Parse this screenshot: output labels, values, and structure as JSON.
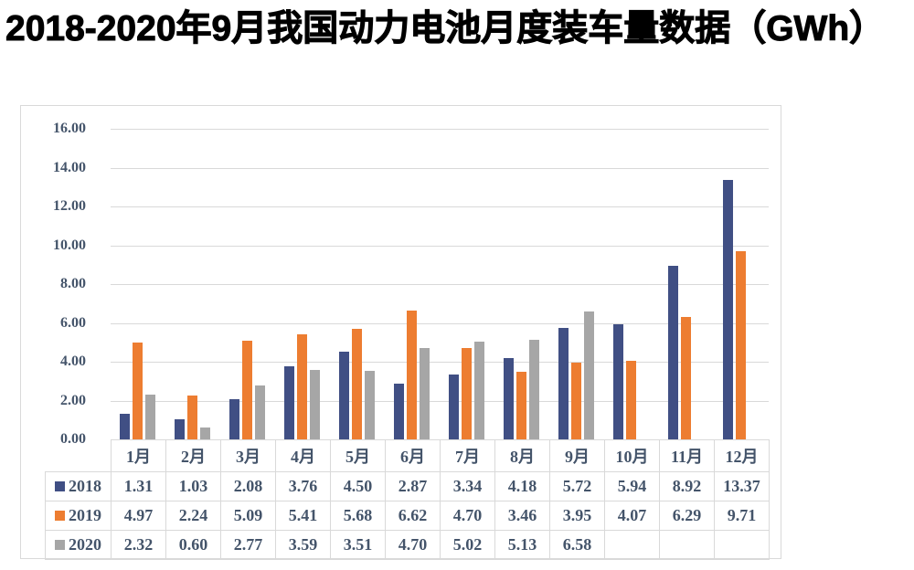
{
  "title": "2018-2020年9月我国动力电池月度装车量数据（GWh）",
  "colors": {
    "series_2018": "#404F84",
    "series_2019": "#ED7D31",
    "series_2020": "#A6A6A6",
    "gridline": "#D9D9D9",
    "axis_text": "#44546A",
    "table_border": "#D9D9D9",
    "title_text": "#000000"
  },
  "chart_data": {
    "type": "bar",
    "title": "2018-2020年9月我国动力电池月度装车量数据（GWh）",
    "xlabel": "",
    "ylabel": "",
    "unit": "GWh",
    "categories": [
      "1月",
      "2月",
      "3月",
      "4月",
      "5月",
      "6月",
      "7月",
      "8月",
      "9月",
      "10月",
      "11月",
      "12月"
    ],
    "series": [
      {
        "name": "2018",
        "color": "#404F84",
        "values": [
          1.31,
          1.03,
          2.08,
          3.76,
          4.5,
          2.87,
          3.34,
          4.18,
          5.72,
          5.94,
          8.92,
          13.37
        ]
      },
      {
        "name": "2019",
        "color": "#ED7D31",
        "values": [
          4.97,
          2.24,
          5.09,
          5.41,
          5.68,
          6.62,
          4.7,
          3.46,
          3.95,
          4.07,
          6.29,
          9.71
        ]
      },
      {
        "name": "2020",
        "color": "#A6A6A6",
        "values": [
          2.32,
          0.6,
          2.77,
          3.59,
          3.51,
          4.7,
          5.02,
          5.13,
          6.58,
          null,
          null,
          null
        ]
      }
    ],
    "ylim": [
      0,
      16
    ],
    "ytick_step": 2,
    "ytick_labels": [
      "16.00",
      "14.00",
      "12.00",
      "10.00",
      "8.00",
      "6.00",
      "4.00",
      "2.00",
      "0.00"
    ],
    "grid": true,
    "legend_position": "data-table-left",
    "data_table_shown": true,
    "value_decimals": 2
  }
}
